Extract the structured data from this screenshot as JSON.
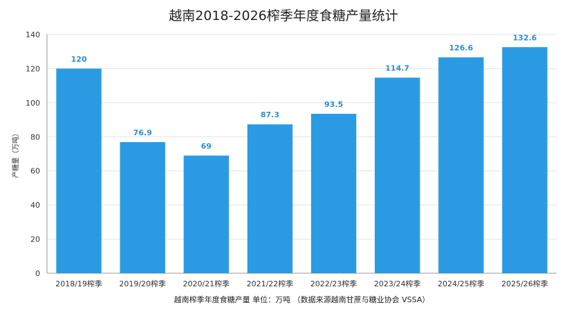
{
  "chart_data": {
    "type": "bar",
    "title": "越南2018-2026榨季年度食糖产量统计",
    "xlabel": "越南榨季年度食糖产量  单位：万吨  （数据来源越南甘蔗与糖业协会 VSSA）",
    "ylabel": "产糖量（万吨）",
    "categories": [
      "2018/19榨季",
      "2019/20榨季",
      "2020/21榨季",
      "2021/22榨季",
      "2022/23榨季",
      "2023/24榨季",
      "2024/25榨季",
      "2025/26榨季"
    ],
    "values": [
      120,
      76.9,
      69,
      87.3,
      93.5,
      114.7,
      126.6,
      132.6
    ],
    "data_labels": [
      "120",
      "76.9",
      "69",
      "87.3",
      "93.5",
      "114.7",
      "126.6",
      "132.6"
    ],
    "ylim": [
      0,
      140
    ],
    "yticks": [
      0,
      20,
      40,
      60,
      80,
      100,
      120,
      140
    ],
    "grid": true,
    "legend": "none",
    "colors": {
      "bar": "#2a9be2",
      "label": "#2a8fd8",
      "grid": "#e2e2e2",
      "axis": "#999999"
    }
  }
}
